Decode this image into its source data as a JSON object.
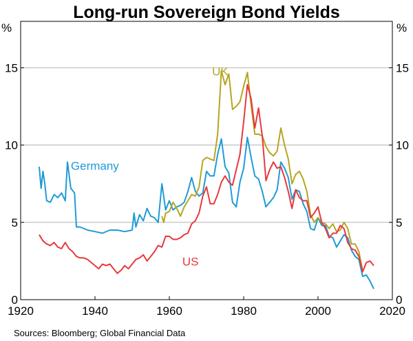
{
  "chart_data": {
    "type": "line",
    "title": "Long-run Sovereign Bond Yields",
    "ylabel_left": "%",
    "ylabel_right": "%",
    "xlim": [
      1920,
      2020
    ],
    "ylim": [
      0,
      18
    ],
    "xticks": [
      1920,
      1940,
      1960,
      1980,
      2000,
      2020
    ],
    "yticks": [
      0,
      5,
      10,
      15
    ],
    "grid": true,
    "source": "Sources:   Bloomberg; Global Financial Data",
    "series": [
      {
        "name": "Germany",
        "color": "#1f9ad6",
        "points": [
          [
            1925,
            8.6
          ],
          [
            1925.5,
            7.2
          ],
          [
            1926,
            8.3
          ],
          [
            1926.5,
            7.5
          ],
          [
            1927,
            6.4
          ],
          [
            1928,
            6.3
          ],
          [
            1929,
            6.8
          ],
          [
            1930,
            6.6
          ],
          [
            1931,
            6.9
          ],
          [
            1932,
            6.4
          ],
          [
            1932.6,
            8.9
          ],
          [
            1933.5,
            7.2
          ],
          [
            1934.5,
            6.9
          ],
          [
            1935,
            4.7
          ],
          [
            1936,
            4.7
          ],
          [
            1938,
            4.5
          ],
          [
            1940,
            4.4
          ],
          [
            1942,
            4.3
          ],
          [
            1944,
            4.5
          ],
          [
            1946,
            4.5
          ],
          [
            1948,
            4.4
          ],
          [
            1950,
            4.5
          ],
          [
            1950.5,
            5.6
          ],
          [
            1951,
            4.7
          ],
          [
            1952,
            5.5
          ],
          [
            1953,
            5.1
          ],
          [
            1954,
            5.9
          ],
          [
            1955,
            5.4
          ],
          [
            1956,
            5.3
          ],
          [
            1957,
            5.0
          ],
          [
            1958,
            7.5
          ],
          [
            1959,
            5.8
          ],
          [
            1960,
            6.4
          ],
          [
            1961,
            5.8
          ],
          [
            1962,
            6.0
          ],
          [
            1963,
            6.1
          ],
          [
            1964,
            6.3
          ],
          [
            1965,
            7.0
          ],
          [
            1966,
            7.9
          ],
          [
            1967,
            7.0
          ],
          [
            1968,
            6.7
          ],
          [
            1969,
            6.9
          ],
          [
            1970,
            8.3
          ],
          [
            1971,
            8.0
          ],
          [
            1972,
            8.0
          ],
          [
            1973,
            9.4
          ],
          [
            1974,
            10.4
          ],
          [
            1975,
            8.6
          ],
          [
            1976,
            8.2
          ],
          [
            1977,
            6.3
          ],
          [
            1978,
            6.0
          ],
          [
            1979,
            7.6
          ],
          [
            1980,
            8.5
          ],
          [
            1981,
            10.5
          ],
          [
            1982,
            9.2
          ],
          [
            1983,
            8.0
          ],
          [
            1984,
            7.8
          ],
          [
            1985,
            7.0
          ],
          [
            1986,
            6.0
          ],
          [
            1987,
            6.3
          ],
          [
            1988,
            6.6
          ],
          [
            1989,
            7.1
          ],
          [
            1990,
            8.9
          ],
          [
            1991,
            8.5
          ],
          [
            1992,
            7.9
          ],
          [
            1993,
            6.5
          ],
          [
            1994,
            7.1
          ],
          [
            1995,
            7.0
          ],
          [
            1996,
            6.2
          ],
          [
            1997,
            5.7
          ],
          [
            1998,
            4.6
          ],
          [
            1999,
            4.5
          ],
          [
            2000,
            5.3
          ],
          [
            2001,
            4.8
          ],
          [
            2002,
            4.8
          ],
          [
            2003,
            4.1
          ],
          [
            2004,
            4.0
          ],
          [
            2005,
            3.4
          ],
          [
            2006,
            3.8
          ],
          [
            2007,
            4.2
          ],
          [
            2008,
            4.0
          ],
          [
            2009,
            3.2
          ],
          [
            2010,
            2.8
          ],
          [
            2011,
            2.6
          ],
          [
            2012,
            1.5
          ],
          [
            2013,
            1.6
          ],
          [
            2014,
            1.2
          ],
          [
            2015,
            0.7
          ]
        ]
      },
      {
        "name": "UK",
        "color": "#b5a520",
        "points": [
          [
            1958,
            5.4
          ],
          [
            1958.5,
            5.0
          ],
          [
            1959,
            5.6
          ],
          [
            1960,
            5.7
          ],
          [
            1961,
            6.3
          ],
          [
            1962,
            5.9
          ],
          [
            1963,
            5.4
          ],
          [
            1964,
            6.0
          ],
          [
            1965,
            6.4
          ],
          [
            1966,
            6.8
          ],
          [
            1967,
            6.7
          ],
          [
            1968,
            7.3
          ],
          [
            1969,
            9.0
          ],
          [
            1970,
            9.2
          ],
          [
            1971,
            9.1
          ],
          [
            1972,
            9.0
          ],
          [
            1973,
            10.7
          ],
          [
            1974,
            14.8
          ],
          [
            1975,
            13.9
          ],
          [
            1976,
            14.6
          ],
          [
            1977,
            12.3
          ],
          [
            1978,
            12.5
          ],
          [
            1979,
            12.8
          ],
          [
            1980,
            13.8
          ],
          [
            1981,
            14.7
          ],
          [
            1982,
            12.6
          ],
          [
            1983,
            10.7
          ],
          [
            1984,
            10.7
          ],
          [
            1985,
            10.6
          ],
          [
            1986,
            9.9
          ],
          [
            1987,
            9.5
          ],
          [
            1988,
            9.3
          ],
          [
            1989,
            9.6
          ],
          [
            1990,
            11.1
          ],
          [
            1991,
            10.0
          ],
          [
            1992,
            9.1
          ],
          [
            1993,
            7.5
          ],
          [
            1994,
            8.1
          ],
          [
            1995,
            8.3
          ],
          [
            1996,
            7.8
          ],
          [
            1997,
            7.0
          ],
          [
            1998,
            5.5
          ],
          [
            1999,
            5.0
          ],
          [
            2000,
            5.3
          ],
          [
            2001,
            5.0
          ],
          [
            2002,
            4.9
          ],
          [
            2003,
            4.6
          ],
          [
            2004,
            4.9
          ],
          [
            2005,
            4.4
          ],
          [
            2006,
            4.5
          ],
          [
            2007,
            5.0
          ],
          [
            2008,
            4.6
          ],
          [
            2009,
            3.6
          ],
          [
            2010,
            3.6
          ],
          [
            2011,
            3.1
          ],
          [
            2012,
            1.9
          ]
        ]
      },
      {
        "name": "US",
        "color": "#e8383d",
        "points": [
          [
            1925,
            4.2
          ],
          [
            1926,
            3.8
          ],
          [
            1927,
            3.6
          ],
          [
            1928,
            3.5
          ],
          [
            1929,
            3.7
          ],
          [
            1930,
            3.4
          ],
          [
            1931,
            3.3
          ],
          [
            1932,
            3.7
          ],
          [
            1933,
            3.3
          ],
          [
            1934,
            3.1
          ],
          [
            1935,
            2.8
          ],
          [
            1936,
            2.7
          ],
          [
            1937,
            2.7
          ],
          [
            1938,
            2.6
          ],
          [
            1939,
            2.4
          ],
          [
            1940,
            2.2
          ],
          [
            1941,
            2.0
          ],
          [
            1942,
            2.3
          ],
          [
            1943,
            2.2
          ],
          [
            1944,
            2.3
          ],
          [
            1945,
            2.0
          ],
          [
            1946,
            1.7
          ],
          [
            1947,
            1.9
          ],
          [
            1948,
            2.2
          ],
          [
            1949,
            2.0
          ],
          [
            1950,
            2.3
          ],
          [
            1951,
            2.6
          ],
          [
            1952,
            2.7
          ],
          [
            1953,
            2.9
          ],
          [
            1954,
            2.5
          ],
          [
            1955,
            2.8
          ],
          [
            1956,
            3.1
          ],
          [
            1957,
            3.5
          ],
          [
            1958,
            3.4
          ],
          [
            1959,
            4.1
          ],
          [
            1960,
            4.1
          ],
          [
            1961,
            3.9
          ],
          [
            1962,
            3.9
          ],
          [
            1963,
            4.0
          ],
          [
            1964,
            4.2
          ],
          [
            1965,
            4.3
          ],
          [
            1966,
            4.9
          ],
          [
            1967,
            5.1
          ],
          [
            1968,
            5.6
          ],
          [
            1969,
            6.7
          ],
          [
            1970,
            7.3
          ],
          [
            1971,
            6.2
          ],
          [
            1972,
            6.2
          ],
          [
            1973,
            6.8
          ],
          [
            1974,
            7.6
          ],
          [
            1975,
            8.0
          ],
          [
            1976,
            7.6
          ],
          [
            1977,
            7.4
          ],
          [
            1978,
            8.4
          ],
          [
            1979,
            9.4
          ],
          [
            1980,
            11.5
          ],
          [
            1981,
            13.9
          ],
          [
            1982,
            13.0
          ],
          [
            1983,
            11.1
          ],
          [
            1984,
            12.4
          ],
          [
            1985,
            10.6
          ],
          [
            1986,
            7.7
          ],
          [
            1987,
            8.4
          ],
          [
            1988,
            8.9
          ],
          [
            1989,
            8.5
          ],
          [
            1990,
            8.6
          ],
          [
            1991,
            7.9
          ],
          [
            1992,
            7.0
          ],
          [
            1993,
            5.9
          ],
          [
            1994,
            7.1
          ],
          [
            1995,
            6.6
          ],
          [
            1996,
            6.4
          ],
          [
            1997,
            6.4
          ],
          [
            1998,
            5.3
          ],
          [
            1999,
            5.6
          ],
          [
            2000,
            6.0
          ],
          [
            2001,
            5.0
          ],
          [
            2002,
            4.6
          ],
          [
            2003,
            4.0
          ],
          [
            2004,
            4.3
          ],
          [
            2005,
            4.3
          ],
          [
            2006,
            4.8
          ],
          [
            2007,
            4.6
          ],
          [
            2008,
            3.7
          ],
          [
            2009,
            3.3
          ],
          [
            2010,
            3.2
          ],
          [
            2011,
            2.8
          ],
          [
            2012,
            1.8
          ],
          [
            2013,
            2.4
          ],
          [
            2014,
            2.5
          ],
          [
            2015,
            2.2
          ]
        ]
      }
    ]
  }
}
